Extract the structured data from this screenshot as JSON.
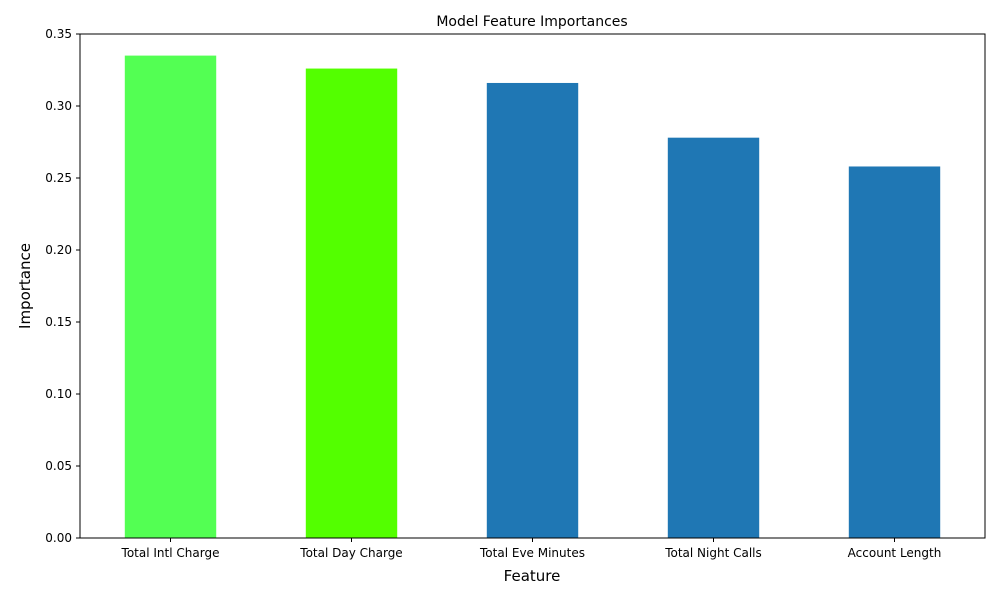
{
  "chart_data": {
    "type": "bar",
    "title": "Model Feature Importances",
    "xlabel": "Feature",
    "ylabel": "Importance",
    "categories": [
      "Total Intl Charge",
      "Total Day Charge",
      "Total Eve Minutes",
      "Total Night Calls",
      "Account Length"
    ],
    "values": [
      0.335,
      0.326,
      0.316,
      0.278,
      0.258
    ],
    "colors": [
      "#53ff53",
      "#53ff00",
      "#1f77b4",
      "#1f77b4",
      "#1f77b4"
    ],
    "ylim": [
      0,
      0.35
    ],
    "yticks": [
      "0.00",
      "0.05",
      "0.10",
      "0.15",
      "0.20",
      "0.25",
      "0.30",
      "0.35"
    ],
    "grid": false,
    "legend": "none"
  }
}
